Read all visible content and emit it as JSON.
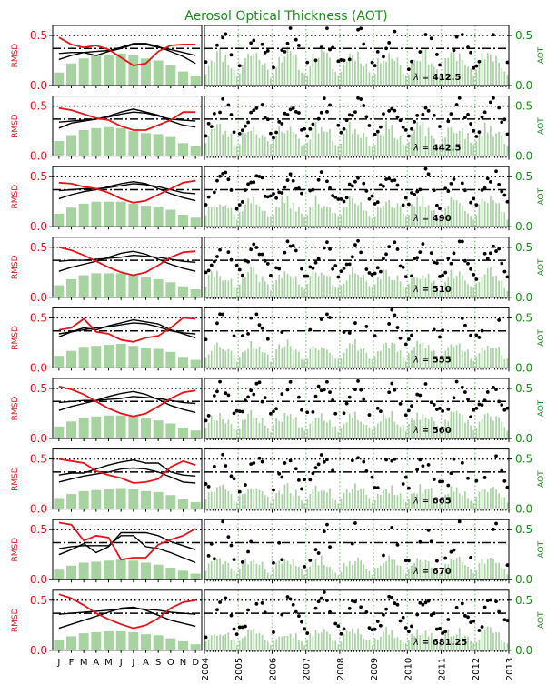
{
  "figure": {
    "title": "Aerosol Optical Thickness (AOT)",
    "colors": {
      "rmsd": "#e8141a",
      "aot": "#1c8c1c",
      "bars": "#a6d3a0",
      "axis": "#000000",
      "grid": "#8fcf8f"
    }
  },
  "left_axis": {
    "ylabel": "RMSD",
    "yticks": [
      "0.0",
      "0.5"
    ],
    "months": [
      "J",
      "F",
      "M",
      "A",
      "M",
      "J",
      "J",
      "A",
      "S",
      "O",
      "N",
      "D"
    ]
  },
  "right_axis": {
    "ylabel": "AOT",
    "yticks": [
      "0.0",
      "0.5"
    ],
    "years": [
      "2004",
      "2005",
      "2006",
      "2007",
      "2008",
      "2009",
      "2010",
      "2011",
      "2012",
      "2013"
    ]
  },
  "chart_data": [
    {
      "type": "line",
      "lambda_label": "412.5",
      "ylim": [
        0,
        0.6
      ],
      "rmsd": [
        0.48,
        0.41,
        0.38,
        0.4,
        0.36,
        0.28,
        0.2,
        0.22,
        0.34,
        0.4,
        0.41,
        0.41
      ],
      "model_a": [
        0.26,
        0.3,
        0.33,
        0.3,
        0.34,
        0.37,
        0.41,
        0.41,
        0.38,
        0.36,
        0.33,
        0.3
      ],
      "model_b": [
        0.32,
        0.33,
        0.33,
        0.34,
        0.35,
        0.38,
        0.42,
        0.42,
        0.39,
        0.34,
        0.29,
        0.22
      ],
      "bars": [
        0.13,
        0.22,
        0.27,
        0.3,
        0.31,
        0.32,
        0.3,
        0.27,
        0.25,
        0.2,
        0.14,
        0.1
      ],
      "dotted_level": 0.5,
      "dashdot_level": 0.37,
      "aot_points_seed": 11,
      "aot_coverage": 0.55
    },
    {
      "type": "line",
      "lambda_label": "442.5",
      "ylim": [
        0,
        0.6
      ],
      "rmsd": [
        0.48,
        0.46,
        0.42,
        0.38,
        0.36,
        0.3,
        0.26,
        0.26,
        0.31,
        0.36,
        0.44,
        0.44
      ],
      "model_a": [
        0.28,
        0.33,
        0.35,
        0.37,
        0.4,
        0.44,
        0.47,
        0.44,
        0.41,
        0.35,
        0.31,
        0.29
      ],
      "model_b": [
        0.34,
        0.35,
        0.36,
        0.37,
        0.39,
        0.42,
        0.44,
        0.43,
        0.4,
        0.37,
        0.36,
        0.35
      ],
      "bars": [
        0.15,
        0.21,
        0.26,
        0.28,
        0.29,
        0.28,
        0.25,
        0.23,
        0.22,
        0.19,
        0.13,
        0.1
      ],
      "dotted_level": 0.5,
      "dashdot_level": 0.37,
      "aot_points_seed": 23,
      "aot_coverage": 0.85
    },
    {
      "type": "line",
      "lambda_label": "490",
      "ylim": [
        0,
        0.6
      ],
      "rmsd": [
        0.44,
        0.43,
        0.4,
        0.38,
        0.34,
        0.28,
        0.24,
        0.26,
        0.32,
        0.38,
        0.44,
        0.46
      ],
      "model_a": [
        0.28,
        0.32,
        0.35,
        0.37,
        0.4,
        0.43,
        0.45,
        0.43,
        0.38,
        0.33,
        0.29,
        0.26
      ],
      "model_b": [
        0.36,
        0.37,
        0.38,
        0.38,
        0.39,
        0.41,
        0.43,
        0.42,
        0.4,
        0.37,
        0.34,
        0.33
      ],
      "bars": [
        0.13,
        0.19,
        0.23,
        0.25,
        0.25,
        0.25,
        0.23,
        0.21,
        0.2,
        0.17,
        0.12,
        0.09
      ],
      "dotted_level": 0.5,
      "dashdot_level": 0.37,
      "aot_points_seed": 37,
      "aot_coverage": 0.85
    },
    {
      "type": "line",
      "lambda_label": "510",
      "ylim": [
        0,
        0.6
      ],
      "rmsd": [
        0.5,
        0.47,
        0.42,
        0.36,
        0.3,
        0.25,
        0.22,
        0.25,
        0.32,
        0.4,
        0.45,
        0.46
      ],
      "model_a": [
        0.26,
        0.3,
        0.33,
        0.36,
        0.4,
        0.44,
        0.46,
        0.43,
        0.38,
        0.33,
        0.29,
        0.26
      ],
      "model_b": [
        0.36,
        0.37,
        0.37,
        0.38,
        0.39,
        0.4,
        0.42,
        0.41,
        0.4,
        0.38,
        0.36,
        0.35
      ],
      "bars": [
        0.12,
        0.18,
        0.22,
        0.24,
        0.24,
        0.24,
        0.22,
        0.2,
        0.18,
        0.15,
        0.11,
        0.08
      ],
      "dotted_level": 0.5,
      "dashdot_level": 0.37,
      "aot_points_seed": 41,
      "aot_coverage": 0.85
    },
    {
      "type": "line",
      "lambda_label": "555",
      "ylim": [
        0,
        0.6
      ],
      "rmsd": [
        0.38,
        0.4,
        0.49,
        0.36,
        0.34,
        0.28,
        0.26,
        0.3,
        0.32,
        0.4,
        0.5,
        0.49
      ],
      "model_a": [
        0.31,
        0.36,
        0.4,
        0.38,
        0.42,
        0.45,
        0.48,
        0.46,
        0.44,
        0.38,
        0.34,
        0.3
      ],
      "model_b": [
        0.34,
        0.36,
        0.38,
        0.4,
        0.41,
        0.43,
        0.45,
        0.44,
        0.41,
        0.37,
        0.35,
        0.34
      ],
      "bars": [
        0.12,
        0.17,
        0.21,
        0.22,
        0.23,
        0.24,
        0.22,
        0.2,
        0.19,
        0.16,
        0.11,
        0.08
      ],
      "dotted_level": 0.5,
      "dashdot_level": 0.37,
      "aot_points_seed": 53,
      "aot_coverage": 0.45
    },
    {
      "type": "line",
      "lambda_label": "560",
      "ylim": [
        0,
        0.6
      ],
      "rmsd": [
        0.52,
        0.49,
        0.44,
        0.37,
        0.3,
        0.25,
        0.22,
        0.25,
        0.32,
        0.4,
        0.46,
        0.48
      ],
      "model_a": [
        0.28,
        0.32,
        0.35,
        0.38,
        0.42,
        0.45,
        0.47,
        0.44,
        0.39,
        0.33,
        0.29,
        0.26
      ],
      "model_b": [
        0.36,
        0.37,
        0.38,
        0.38,
        0.39,
        0.4,
        0.42,
        0.41,
        0.4,
        0.38,
        0.36,
        0.35
      ],
      "bars": [
        0.12,
        0.17,
        0.21,
        0.22,
        0.23,
        0.23,
        0.22,
        0.2,
        0.18,
        0.15,
        0.11,
        0.08
      ],
      "dotted_level": 0.5,
      "dashdot_level": 0.37,
      "aot_points_seed": 67,
      "aot_coverage": 0.85
    },
    {
      "type": "line",
      "lambda_label": "665",
      "ylim": [
        0,
        0.6
      ],
      "rmsd": [
        0.5,
        0.48,
        0.46,
        0.38,
        0.34,
        0.31,
        0.26,
        0.27,
        0.3,
        0.42,
        0.48,
        0.44
      ],
      "model_a": [
        0.34,
        0.36,
        0.36,
        0.4,
        0.44,
        0.47,
        0.49,
        0.46,
        0.46,
        0.37,
        0.34,
        0.33
      ],
      "model_b": [
        0.27,
        0.3,
        0.33,
        0.35,
        0.37,
        0.4,
        0.41,
        0.4,
        0.37,
        0.32,
        0.27,
        0.26
      ],
      "bars": [
        0.11,
        0.15,
        0.18,
        0.19,
        0.2,
        0.21,
        0.2,
        0.18,
        0.17,
        0.14,
        0.1,
        0.07
      ],
      "dotted_level": 0.5,
      "dashdot_level": 0.37,
      "aot_points_seed": 71,
      "aot_coverage": 0.55
    },
    {
      "type": "line",
      "lambda_label": "670",
      "ylim": [
        0,
        0.6
      ],
      "rmsd": [
        0.57,
        0.55,
        0.39,
        0.44,
        0.42,
        0.2,
        0.22,
        0.22,
        0.35,
        0.4,
        0.44,
        0.51
      ],
      "model_a": [
        0.25,
        0.3,
        0.36,
        0.27,
        0.33,
        0.47,
        0.47,
        0.47,
        0.44,
        0.38,
        0.34,
        0.3
      ],
      "model_b": [
        0.31,
        0.33,
        0.34,
        0.34,
        0.34,
        0.44,
        0.44,
        0.33,
        0.31,
        0.27,
        0.22,
        0.17
      ],
      "bars": [
        0.1,
        0.14,
        0.17,
        0.18,
        0.19,
        0.2,
        0.19,
        0.17,
        0.15,
        0.12,
        0.09,
        0.06
      ],
      "dotted_level": 0.5,
      "dashdot_level": 0.37,
      "aot_points_seed": 83,
      "aot_coverage": 0.35
    },
    {
      "type": "line",
      "lambda_label": "681.25",
      "ylim": [
        0,
        0.6
      ],
      "rmsd": [
        0.56,
        0.52,
        0.45,
        0.37,
        0.31,
        0.26,
        0.22,
        0.25,
        0.32,
        0.42,
        0.48,
        0.5
      ],
      "model_a": [
        0.22,
        0.26,
        0.3,
        0.34,
        0.38,
        0.42,
        0.43,
        0.4,
        0.35,
        0.3,
        0.27,
        0.24
      ],
      "model_b": [
        0.36,
        0.37,
        0.38,
        0.39,
        0.4,
        0.41,
        0.42,
        0.41,
        0.4,
        0.38,
        0.37,
        0.36
      ],
      "bars": [
        0.1,
        0.14,
        0.17,
        0.18,
        0.19,
        0.19,
        0.18,
        0.16,
        0.15,
        0.12,
        0.09,
        0.06
      ],
      "dotted_level": 0.5,
      "dashdot_level": 0.37,
      "aot_points_seed": 97,
      "aot_coverage": 0.75
    }
  ]
}
